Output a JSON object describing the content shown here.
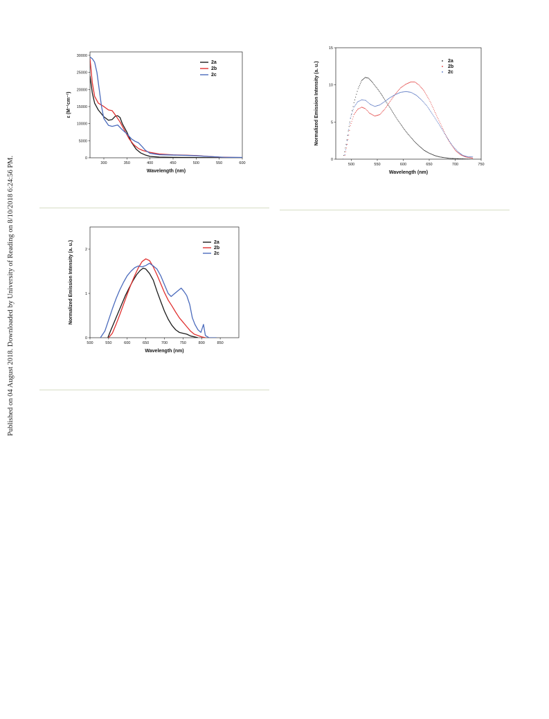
{
  "page": {
    "side_note": "Published on 04 August 2018. Downloaded by University of Reading on 8/10/2018 6:24:56 PM."
  },
  "chart_data": [
    {
      "type": "line",
      "xlabel": "Wavelength (nm)",
      "ylabel": "ε (M⁻¹cm⁻¹)",
      "xlim": [
        270,
        600
      ],
      "ylim": [
        0,
        31000
      ],
      "xticks": [
        300,
        350,
        400,
        450,
        500,
        550,
        600
      ],
      "yticks": [
        0,
        5000,
        10000,
        15000,
        20000,
        25000,
        30000
      ],
      "legend_position": "top-right",
      "series": [
        {
          "name": "2a",
          "color": "#1a1a1a",
          "style": "line",
          "points": [
            [
              270,
              24000
            ],
            [
              275,
              19000
            ],
            [
              280,
              16000
            ],
            [
              288,
              14000
            ],
            [
              300,
              12000
            ],
            [
              310,
              11000
            ],
            [
              318,
              11200
            ],
            [
              325,
              12200
            ],
            [
              330,
              12300
            ],
            [
              335,
              11800
            ],
            [
              340,
              10000
            ],
            [
              350,
              7500
            ],
            [
              360,
              4500
            ],
            [
              370,
              2500
            ],
            [
              380,
              1400
            ],
            [
              390,
              800
            ],
            [
              400,
              400
            ],
            [
              420,
              200
            ],
            [
              450,
              120
            ],
            [
              500,
              60
            ],
            [
              550,
              30
            ],
            [
              600,
              10
            ]
          ]
        },
        {
          "name": "2b",
          "color": "#e0302f",
          "style": "line",
          "points": [
            [
              270,
              29000
            ],
            [
              275,
              22000
            ],
            [
              280,
              18000
            ],
            [
              288,
              16000
            ],
            [
              300,
              15000
            ],
            [
              310,
              14000
            ],
            [
              318,
              13800
            ],
            [
              325,
              12500
            ],
            [
              335,
              10500
            ],
            [
              345,
              8000
            ],
            [
              355,
              5500
            ],
            [
              365,
              3800
            ],
            [
              375,
              2700
            ],
            [
              385,
              2100
            ],
            [
              400,
              1600
            ],
            [
              420,
              1100
            ],
            [
              450,
              850
            ],
            [
              480,
              750
            ],
            [
              500,
              650
            ],
            [
              520,
              450
            ],
            [
              550,
              200
            ],
            [
              580,
              100
            ],
            [
              600,
              80
            ]
          ]
        },
        {
          "name": "2c",
          "color": "#4a6abc",
          "style": "line",
          "points": [
            [
              270,
              29500
            ],
            [
              275,
              29000
            ],
            [
              280,
              28000
            ],
            [
              285,
              25000
            ],
            [
              290,
              20000
            ],
            [
              295,
              15000
            ],
            [
              300,
              11500
            ],
            [
              310,
              9500
            ],
            [
              318,
              9200
            ],
            [
              330,
              9600
            ],
            [
              340,
              8200
            ],
            [
              350,
              7000
            ],
            [
              360,
              5500
            ],
            [
              368,
              4800
            ],
            [
              375,
              4400
            ],
            [
              382,
              3400
            ],
            [
              390,
              2200
            ],
            [
              400,
              1300
            ],
            [
              420,
              900
            ],
            [
              450,
              800
            ],
            [
              480,
              700
            ],
            [
              500,
              600
            ],
            [
              530,
              350
            ],
            [
              560,
              150
            ],
            [
              600,
              90
            ]
          ]
        }
      ]
    },
    {
      "type": "scatter",
      "xlabel": "Wavelength (nm)",
      "ylabel": "Normalized Emission Intensity (a. u.)",
      "xlim": [
        470,
        750
      ],
      "ylim": [
        0,
        15
      ],
      "xticks": [
        500,
        550,
        600,
        650,
        700,
        750
      ],
      "yticks": [
        0,
        5,
        10,
        15
      ],
      "legend_position": "top-right",
      "series": [
        {
          "name": "2a",
          "color": "#1a1a1a",
          "style": "dots",
          "points": [
            [
              484,
              0
            ],
            [
              490,
              2
            ],
            [
              497,
              5
            ],
            [
              505,
              7.6
            ],
            [
              513,
              9.5
            ],
            [
              520,
              10.6
            ],
            [
              527,
              11.0
            ],
            [
              533,
              10.9
            ],
            [
              540,
              10.4
            ],
            [
              550,
              9.5
            ],
            [
              560,
              8.5
            ],
            [
              570,
              7.4
            ],
            [
              580,
              6.3
            ],
            [
              590,
              5.2
            ],
            [
              600,
              4.2
            ],
            [
              610,
              3.3
            ],
            [
              620,
              2.5
            ],
            [
              630,
              1.8
            ],
            [
              640,
              1.2
            ],
            [
              650,
              0.8
            ],
            [
              660,
              0.5
            ],
            [
              670,
              0.3
            ],
            [
              690,
              0.1
            ],
            [
              710,
              0.05
            ],
            [
              730,
              0
            ]
          ]
        },
        {
          "name": "2b",
          "color": "#e0302f",
          "style": "dots",
          "points": [
            [
              486,
              0
            ],
            [
              492,
              2
            ],
            [
              498,
              4.5
            ],
            [
              505,
              6.0
            ],
            [
              512,
              6.7
            ],
            [
              520,
              7.0
            ],
            [
              527,
              6.8
            ],
            [
              535,
              6.2
            ],
            [
              545,
              5.8
            ],
            [
              555,
              6.0
            ],
            [
              565,
              6.8
            ],
            [
              575,
              7.8
            ],
            [
              585,
              8.8
            ],
            [
              595,
              9.6
            ],
            [
              605,
              10.1
            ],
            [
              615,
              10.4
            ],
            [
              622,
              10.4
            ],
            [
              630,
              10.0
            ],
            [
              640,
              9.2
            ],
            [
              650,
              8.0
            ],
            [
              660,
              6.5
            ],
            [
              670,
              5.0
            ],
            [
              680,
              3.5
            ],
            [
              690,
              2.2
            ],
            [
              700,
              1.2
            ],
            [
              710,
              0.6
            ],
            [
              720,
              0.3
            ],
            [
              735,
              0.1
            ]
          ]
        },
        {
          "name": "2c",
          "color": "#4a6abc",
          "style": "dots",
          "points": [
            [
              486,
              0
            ],
            [
              492,
              2.5
            ],
            [
              498,
              5.5
            ],
            [
              505,
              7.0
            ],
            [
              512,
              7.7
            ],
            [
              520,
              8.0
            ],
            [
              528,
              7.9
            ],
            [
              536,
              7.4
            ],
            [
              545,
              7.1
            ],
            [
              555,
              7.3
            ],
            [
              565,
              7.8
            ],
            [
              575,
              8.3
            ],
            [
              585,
              8.7
            ],
            [
              595,
              9.0
            ],
            [
              605,
              9.1
            ],
            [
              615,
              9.0
            ],
            [
              625,
              8.6
            ],
            [
              635,
              8.0
            ],
            [
              645,
              7.2
            ],
            [
              655,
              6.2
            ],
            [
              665,
              5.1
            ],
            [
              675,
              4.0
            ],
            [
              685,
              2.8
            ],
            [
              695,
              1.8
            ],
            [
              705,
              1.0
            ],
            [
              715,
              0.5
            ],
            [
              725,
              0.3
            ],
            [
              735,
              0.3
            ]
          ]
        }
      ]
    },
    {
      "type": "line",
      "xlabel": "Wavelength (nm)",
      "ylabel": "Normalized Emission Intensity (a. u.)",
      "xlim": [
        500,
        900
      ],
      "ylim": [
        0,
        2.5
      ],
      "xticks": [
        500,
        550,
        600,
        650,
        700,
        750,
        800,
        850
      ],
      "yticks": [
        0,
        1,
        2
      ],
      "legend_position": "top-right",
      "series": [
        {
          "name": "2a",
          "color": "#1a1a1a",
          "style": "line",
          "points": [
            [
              548,
              0
            ],
            [
              555,
              0.15
            ],
            [
              565,
              0.35
            ],
            [
              575,
              0.55
            ],
            [
              585,
              0.75
            ],
            [
              595,
              0.95
            ],
            [
              605,
              1.12
            ],
            [
              615,
              1.28
            ],
            [
              625,
              1.42
            ],
            [
              635,
              1.52
            ],
            [
              643,
              1.57
            ],
            [
              650,
              1.55
            ],
            [
              660,
              1.45
            ],
            [
              670,
              1.3
            ],
            [
              680,
              1.05
            ],
            [
              690,
              0.82
            ],
            [
              700,
              0.6
            ],
            [
              710,
              0.42
            ],
            [
              720,
              0.28
            ],
            [
              730,
              0.18
            ],
            [
              740,
              0.12
            ],
            [
              750,
              0.1
            ],
            [
              760,
              0.08
            ],
            [
              770,
              0.04
            ],
            [
              790,
              0
            ]
          ]
        },
        {
          "name": "2b",
          "color": "#e0302f",
          "style": "line",
          "points": [
            [
              550,
              0
            ],
            [
              560,
              0.1
            ],
            [
              570,
              0.3
            ],
            [
              580,
              0.52
            ],
            [
              590,
              0.75
            ],
            [
              600,
              0.98
            ],
            [
              610,
              1.2
            ],
            [
              620,
              1.4
            ],
            [
              630,
              1.58
            ],
            [
              640,
              1.72
            ],
            [
              650,
              1.78
            ],
            [
              660,
              1.74
            ],
            [
              670,
              1.6
            ],
            [
              680,
              1.42
            ],
            [
              690,
              1.22
            ],
            [
              700,
              1.02
            ],
            [
              710,
              0.85
            ],
            [
              720,
              0.72
            ],
            [
              730,
              0.58
            ],
            [
              740,
              0.45
            ],
            [
              750,
              0.35
            ],
            [
              760,
              0.25
            ],
            [
              770,
              0.15
            ],
            [
              780,
              0.08
            ],
            [
              800,
              0.02
            ],
            [
              810,
              0
            ]
          ]
        },
        {
          "name": "2c",
          "color": "#4a6abc",
          "style": "line",
          "points": [
            [
              528,
              0
            ],
            [
              540,
              0.15
            ],
            [
              550,
              0.4
            ],
            [
              560,
              0.65
            ],
            [
              570,
              0.88
            ],
            [
              580,
              1.08
            ],
            [
              590,
              1.25
            ],
            [
              600,
              1.4
            ],
            [
              610,
              1.5
            ],
            [
              620,
              1.58
            ],
            [
              630,
              1.62
            ],
            [
              640,
              1.6
            ],
            [
              650,
              1.63
            ],
            [
              660,
              1.68
            ],
            [
              670,
              1.62
            ],
            [
              680,
              1.55
            ],
            [
              690,
              1.4
            ],
            [
              700,
              1.2
            ],
            [
              710,
              1.0
            ],
            [
              718,
              0.93
            ],
            [
              725,
              0.98
            ],
            [
              735,
              1.05
            ],
            [
              745,
              1.12
            ],
            [
              752,
              1.05
            ],
            [
              760,
              0.95
            ],
            [
              768,
              0.75
            ],
            [
              775,
              0.45
            ],
            [
              782,
              0.3
            ],
            [
              790,
              0.18
            ],
            [
              798,
              0.12
            ],
            [
              805,
              0.3
            ],
            [
              810,
              0.05
            ],
            [
              820,
              0
            ],
            [
              840,
              0
            ]
          ]
        }
      ]
    }
  ]
}
